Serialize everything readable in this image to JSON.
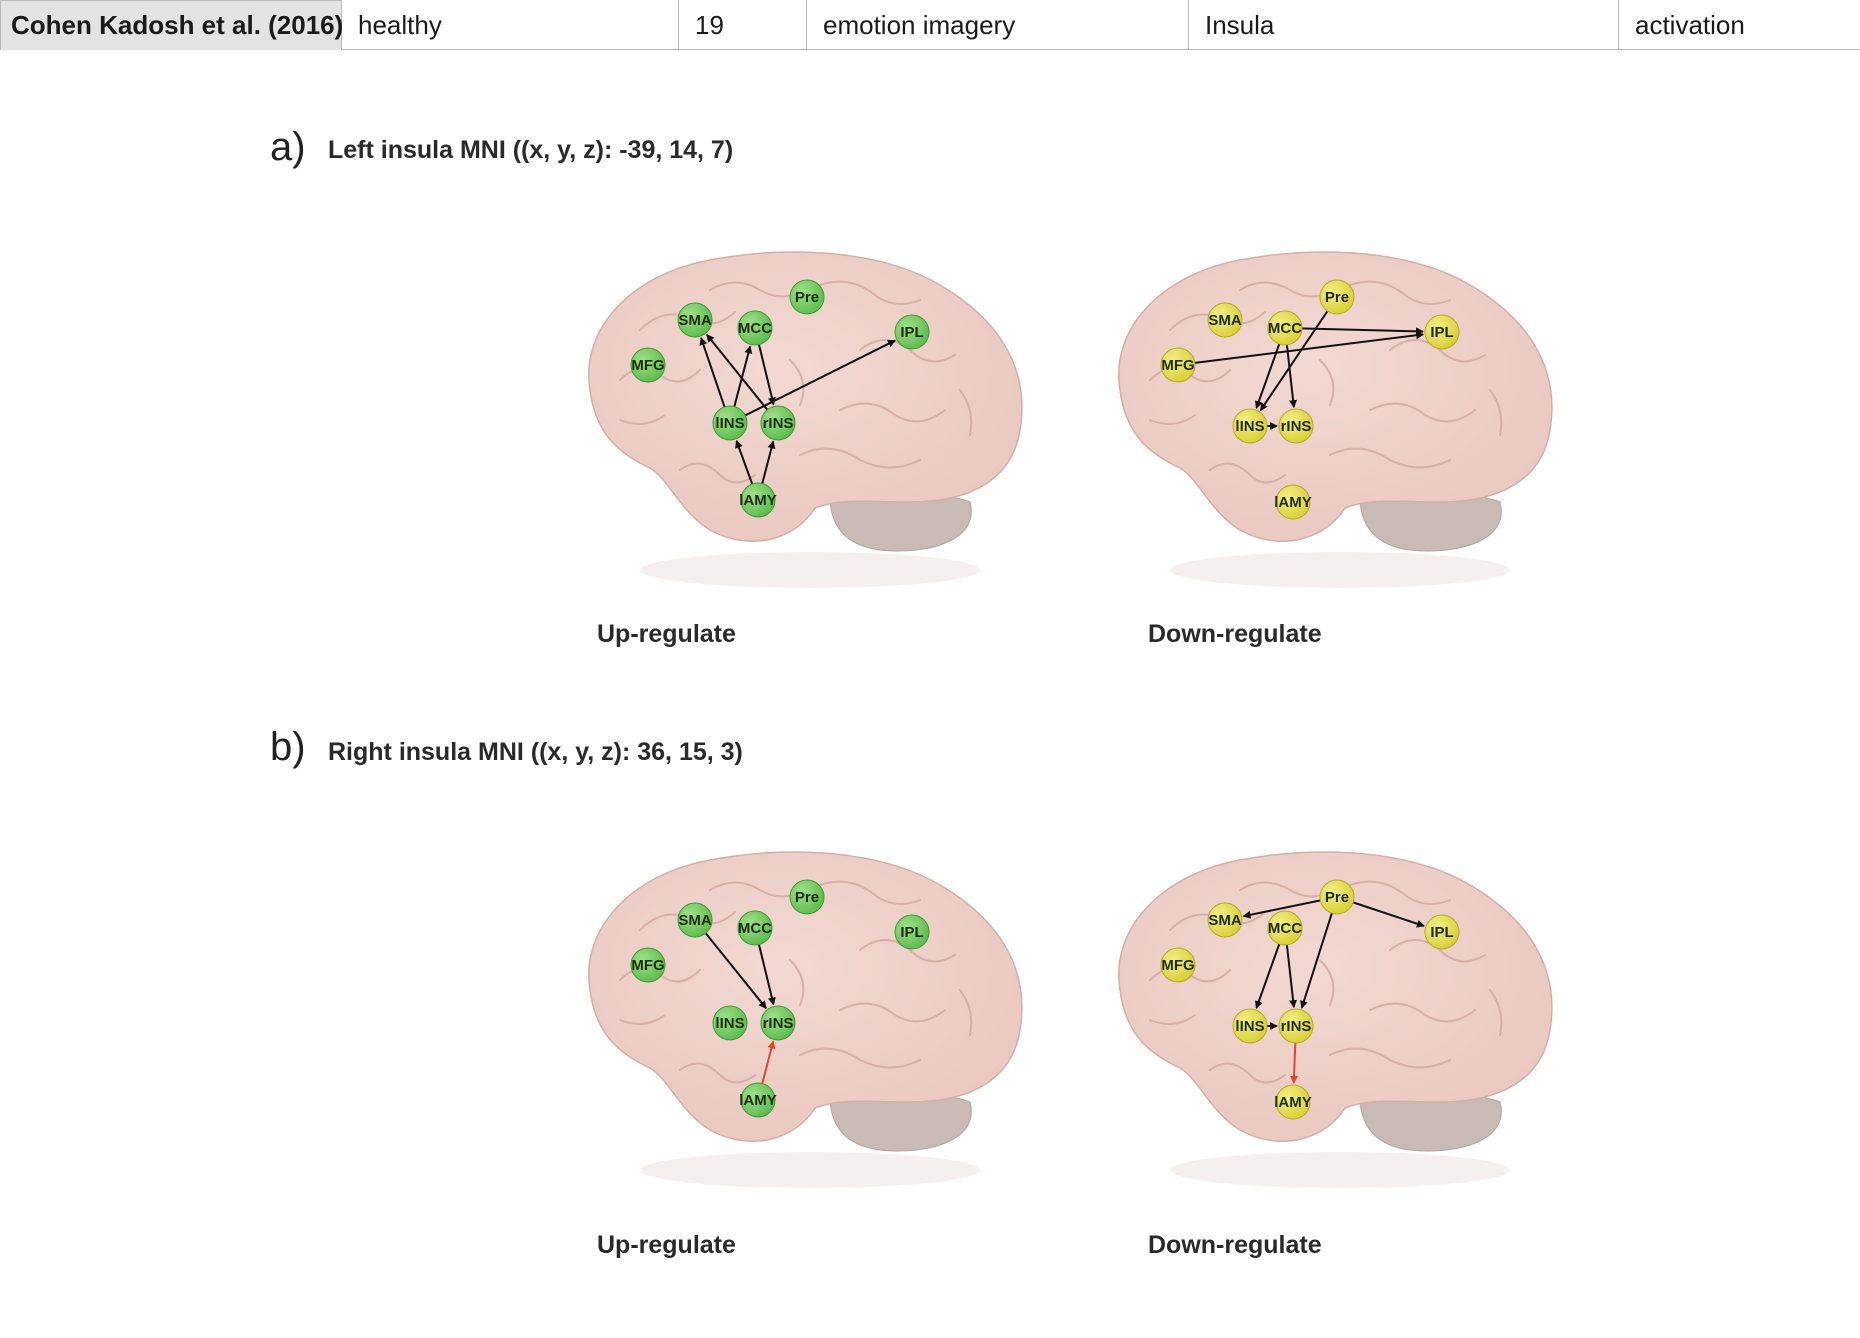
{
  "table_row": {
    "cells": [
      "Cohen Kadosh et al. (2016)",
      "healthy",
      "19",
      "emotion imagery",
      "Insula",
      "activation"
    ]
  },
  "figure": {
    "panels": [
      {
        "letter": "a)",
        "title": "Left insula MNI ((x, y, z): -39, 14, 7)",
        "brains": [
          {
            "caption": "Up-regulate",
            "node_color": "green",
            "nodes": {
              "SMA": "SMA",
              "MCC": "MCC",
              "Pre": "Pre",
              "IPL": "IPL",
              "MFG": "MFG",
              "lINS": "lINS",
              "rINS": "rINS",
              "lAMY": "lAMY"
            }
          },
          {
            "caption": "Down-regulate",
            "node_color": "yellow",
            "nodes": {
              "SMA": "SMA",
              "MCC": "MCC",
              "Pre": "Pre",
              "IPL": "IPL",
              "MFG": "MFG",
              "lINS": "lINS",
              "rINS": "rINS",
              "lAMY": "lAMY"
            }
          }
        ]
      },
      {
        "letter": "b)",
        "title": "Right insula MNI ((x, y, z): 36, 15, 3)",
        "brains": [
          {
            "caption": "Up-regulate",
            "node_color": "green",
            "nodes": {
              "SMA": "SMA",
              "MCC": "MCC",
              "Pre": "Pre",
              "IPL": "IPL",
              "MFG": "MFG",
              "lINS": "lINS",
              "rINS": "rINS",
              "lAMY": "lAMY"
            }
          },
          {
            "caption": "Down-regulate",
            "node_color": "yellow",
            "nodes": {
              "SMA": "SMA",
              "MCC": "MCC",
              "Pre": "Pre",
              "IPL": "IPL",
              "MFG": "MFG",
              "lINS": "lINS",
              "rINS": "rINS",
              "lAMY": "lAMY"
            }
          }
        ]
      }
    ],
    "colors": {
      "brain_fill": "#e9c8c0",
      "green_node": "#5dbb4c",
      "yellow_node": "#d8cf37",
      "arrow_black": "#111111",
      "arrow_red": "#e8452c"
    }
  }
}
